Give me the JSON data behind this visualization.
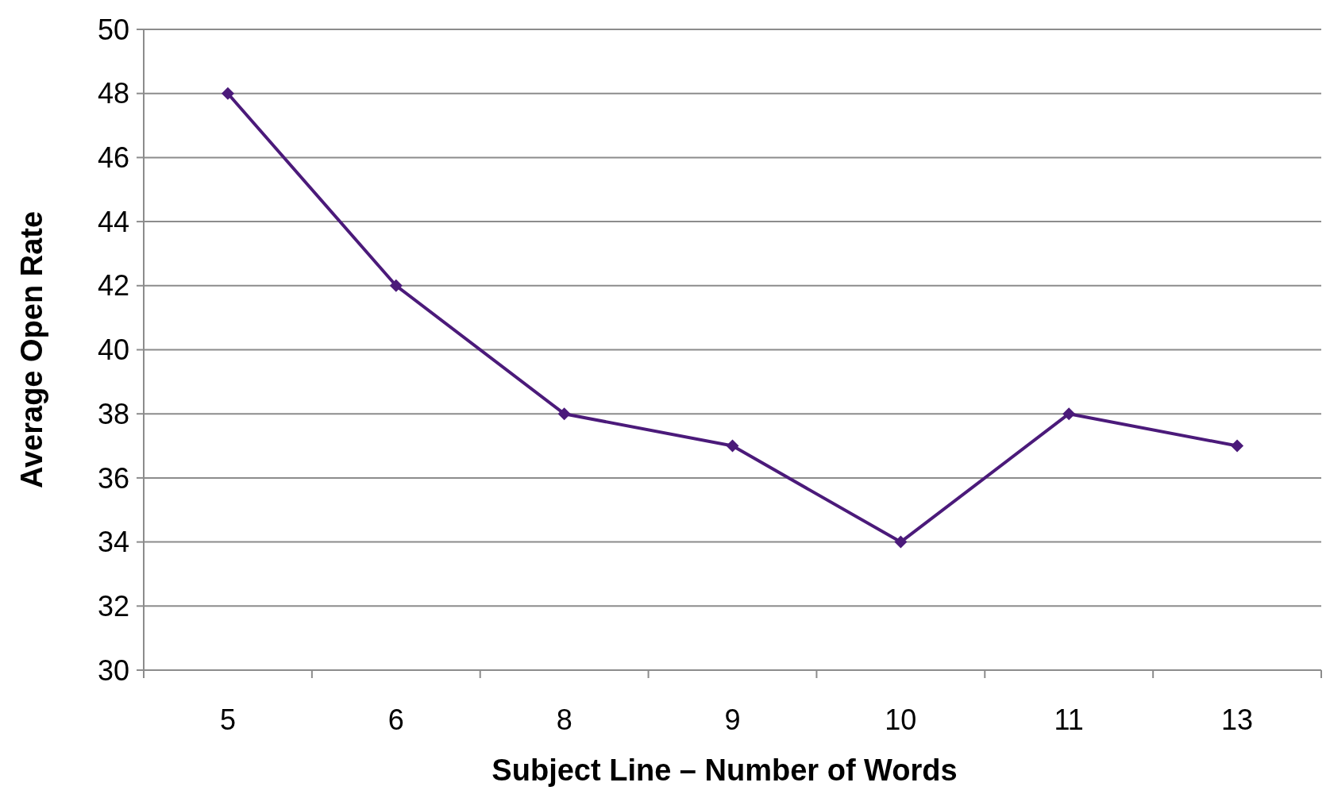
{
  "chart_data": {
    "type": "line",
    "xlabel": "Subject Line – Number of Words",
    "ylabel": "Average Open Rate",
    "categories": [
      "5",
      "6",
      "8",
      "9",
      "10",
      "11",
      "13"
    ],
    "series": [
      {
        "color": "#4b1a7a",
        "values": [
          48,
          42,
          38,
          37,
          34,
          38,
          37
        ]
      }
    ],
    "ylim": [
      30,
      50
    ],
    "yticks": [
      30,
      32,
      34,
      36,
      38,
      40,
      42,
      44,
      46,
      48,
      50
    ],
    "grid": "y",
    "marker": "diamond",
    "line_style": "solid"
  }
}
